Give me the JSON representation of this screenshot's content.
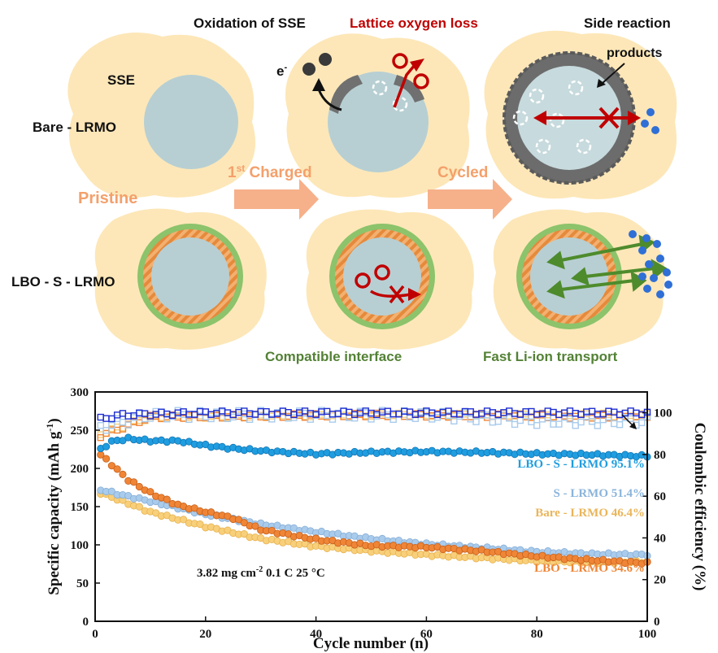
{
  "scheme": {
    "labels": {
      "sse": "SSE",
      "bare": "Bare - LRMO",
      "lbo": "LBO - S - LRMO",
      "pristine": "Pristine",
      "charged_sup": "st",
      "charged_num": "1",
      "charged_rest": " Charged",
      "cycled": "Cycled",
      "oxidation": "Oxidation of SSE",
      "oxygen_loss": "Lattice oxygen  loss",
      "side_reaction": "Side reaction",
      "products": "products",
      "electron": "e",
      "electron_sup": "-",
      "compatible": "Compatible interface",
      "fast_li": "Fast Li-ion transport"
    },
    "colors": {
      "sse": "#fde7b8",
      "particle": "#b7cfd3",
      "coating_green": "#8cc36b",
      "coating_orange": "#e58a3c",
      "arrow": "#f6b08a",
      "red": "#c00000",
      "green_text": "#538135",
      "orange_text": "#f4a06b",
      "blue_dot": "#2f6fd6",
      "gray_layer": "#707070"
    }
  },
  "chart_data": {
    "type": "scatter",
    "xlabel": "Cycle number (n)",
    "ylabel": "Specific capacity (mAh g",
    "ylabel_sup": "-1",
    "ylabel_end": ")",
    "y2label": "Coulombic efficiency (%)",
    "xlim": [
      0,
      100
    ],
    "ylim": [
      0,
      300
    ],
    "y2lim": [
      0,
      110
    ],
    "xticks": [
      "0",
      "20",
      "40",
      "60",
      "80",
      "100"
    ],
    "yticks": [
      "0",
      "50",
      "100",
      "150",
      "200",
      "250",
      "300"
    ],
    "y2ticks": [
      "0",
      "20",
      "40",
      "60",
      "80",
      "100"
    ],
    "annotation": "3.82 mg cm",
    "annotation_sup": "-2",
    "annotation_rest": "    0.1 C  25 °C",
    "series": [
      {
        "name": "LBO - S - LRMO",
        "retention": "95.1%",
        "color": "#1f9de0",
        "edge": "#1476b3",
        "capacity_anchors": [
          [
            1,
            225
          ],
          [
            3,
            235
          ],
          [
            6,
            239
          ],
          [
            10,
            236
          ],
          [
            15,
            236
          ],
          [
            20,
            230
          ],
          [
            25,
            226
          ],
          [
            30,
            223
          ],
          [
            40,
            219
          ],
          [
            50,
            221
          ],
          [
            60,
            222
          ],
          [
            70,
            221
          ],
          [
            80,
            219
          ],
          [
            90,
            218
          ],
          [
            100,
            216
          ]
        ],
        "ce_anchors": [
          [
            1,
            97
          ],
          [
            5,
            99
          ],
          [
            20,
            100
          ],
          [
            50,
            100
          ],
          [
            80,
            100
          ],
          [
            100,
            100
          ]
        ]
      },
      {
        "name": "S - LRMO",
        "retention": "51.4%",
        "color": "#a9cbec",
        "edge": "#86aed6",
        "capacity_anchors": [
          [
            1,
            172
          ],
          [
            5,
            165
          ],
          [
            10,
            157
          ],
          [
            20,
            140
          ],
          [
            30,
            127
          ],
          [
            40,
            117
          ],
          [
            50,
            108
          ],
          [
            60,
            101
          ],
          [
            70,
            96
          ],
          [
            80,
            91
          ],
          [
            90,
            88
          ],
          [
            100,
            87
          ]
        ],
        "ce_anchors": [
          [
            1,
            93
          ],
          [
            10,
            99
          ],
          [
            40,
            99
          ],
          [
            60,
            99
          ],
          [
            80,
            96
          ],
          [
            100,
            96
          ]
        ]
      },
      {
        "name": "Bare - LRMO",
        "retention": "46.4%",
        "color": "#f8cf7a",
        "edge": "#e7b24e",
        "capacity_anchors": [
          [
            1,
            168
          ],
          [
            5,
            157
          ],
          [
            10,
            143
          ],
          [
            20,
            124
          ],
          [
            30,
            108
          ],
          [
            40,
            98
          ],
          [
            50,
            92
          ],
          [
            60,
            87
          ],
          [
            70,
            83
          ],
          [
            80,
            79
          ],
          [
            90,
            77
          ],
          [
            100,
            78
          ]
        ],
        "ce_anchors": [
          [
            1,
            90
          ],
          [
            10,
            98
          ],
          [
            50,
            99
          ],
          [
            100,
            99
          ]
        ]
      },
      {
        "name": "LBO - LRMO",
        "retention": "34.6%",
        "color": "#ef8536",
        "edge": "#c8601a",
        "capacity_anchors": [
          [
            1,
            218
          ],
          [
            3,
            205
          ],
          [
            6,
            185
          ],
          [
            10,
            168
          ],
          [
            15,
            152
          ],
          [
            20,
            143
          ],
          [
            25,
            135
          ],
          [
            30,
            120
          ],
          [
            40,
            107
          ],
          [
            50,
            99
          ],
          [
            60,
            97
          ],
          [
            70,
            92
          ],
          [
            80,
            85
          ],
          [
            90,
            80
          ],
          [
            100,
            76
          ]
        ],
        "ce_anchors": [
          [
            1,
            89
          ],
          [
            10,
            98
          ],
          [
            50,
            99
          ],
          [
            100,
            98
          ]
        ]
      }
    ]
  }
}
